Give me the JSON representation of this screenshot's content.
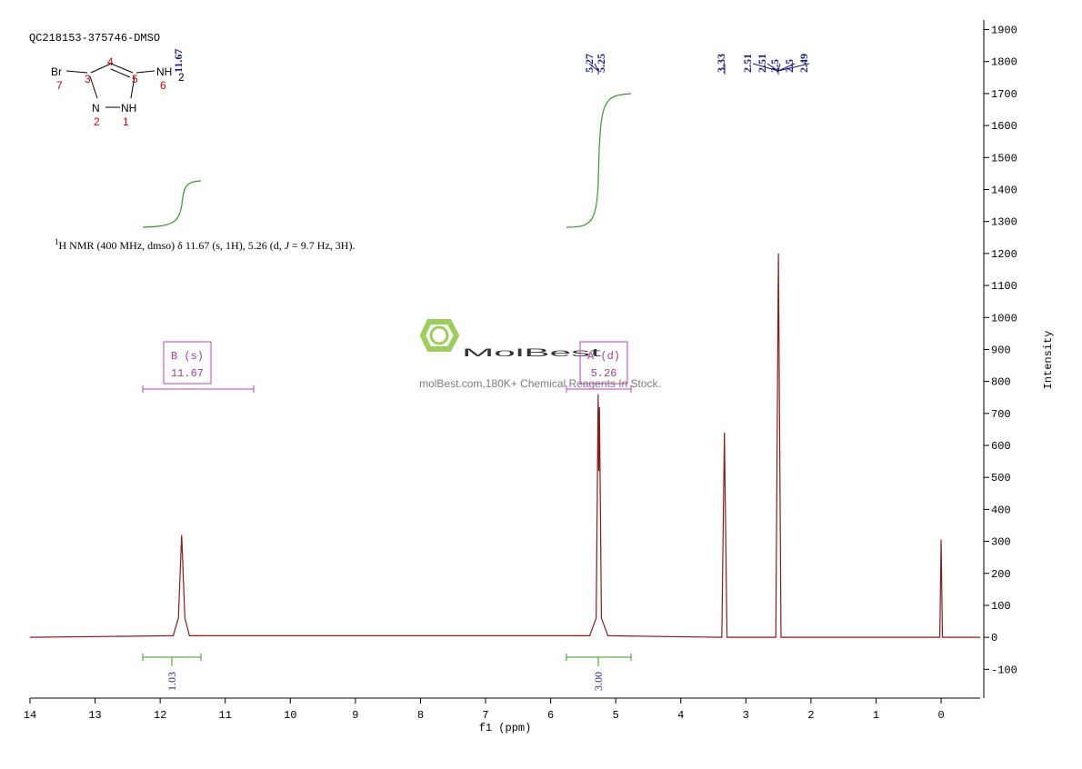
{
  "sample_id": "QC218153-375746-DMSO",
  "molecule": {
    "br": "Br",
    "nh2": "NH",
    "nh2_sub": "2",
    "n": "N",
    "nh": "NH",
    "numbers": [
      "1",
      "2",
      "3",
      "4",
      "5",
      "6",
      "7"
    ]
  },
  "description": {
    "sup": "1",
    "text": "H NMR (400 MHz, dmso) δ 11.67 (s, 1H), 5.26 (d, ",
    "j": "J",
    "rest": " = 9.7 Hz, 3H)."
  },
  "watermark": {
    "brand": "MolBest",
    "tagline": "molBest.com,180K+ Chemical Reagents In Stock."
  },
  "chart_data": {
    "type": "line",
    "x_label": "f1 (ppm)",
    "y_label": "Intensity",
    "x": [
      14,
      11.8,
      11.72,
      11.67,
      11.62,
      11.55,
      5.4,
      5.3,
      5.27,
      5.26,
      5.25,
      5.22,
      5.12,
      3.37,
      3.33,
      3.29,
      2.54,
      2.5,
      2.46,
      0.02,
      0,
      -0.02,
      -0.6
    ],
    "series": [
      {
        "name": "spectrum",
        "color": "#8b1a1a",
        "values": [
          0,
          5,
          60,
          320,
          60,
          5,
          5,
          60,
          760,
          520,
          720,
          60,
          5,
          0,
          640,
          0,
          0,
          1200,
          0,
          0,
          305,
          0,
          0
        ]
      }
    ],
    "xlim": [
      14,
      -0.6
    ],
    "xticks": [
      14,
      13,
      12,
      11,
      10,
      9,
      8,
      7,
      6,
      5,
      4,
      3,
      2,
      1,
      0
    ],
    "ylim": [
      -190,
      1930
    ],
    "yticks": [
      -100,
      0,
      100,
      200,
      300,
      400,
      500,
      600,
      700,
      800,
      900,
      1000,
      1100,
      1200,
      1300,
      1400,
      1500,
      1600,
      1700,
      1800,
      1900
    ],
    "peak_labels": [
      11.67,
      5.27,
      5.25,
      3.33,
      2.51,
      2.51,
      2.5,
      2.5,
      2.49
    ],
    "multiplets": [
      {
        "name": "B (s)",
        "shift": "11.67"
      },
      {
        "name": "A (d)",
        "shift": "5.26"
      }
    ],
    "integrals": [
      "1.03",
      "3.00"
    ]
  }
}
